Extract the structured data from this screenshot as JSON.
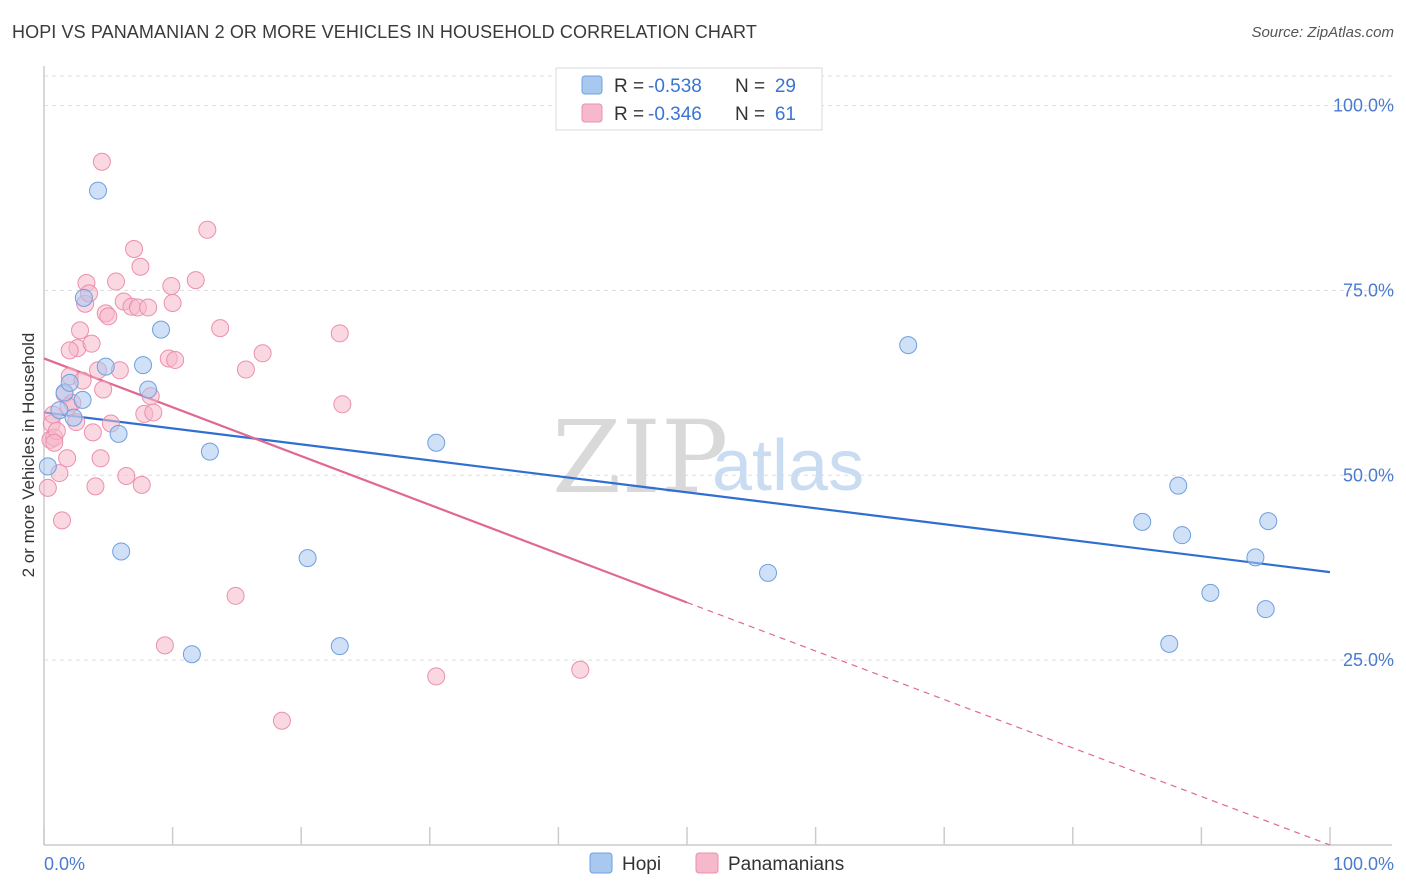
{
  "header": {
    "title": "HOPI VS PANAMANIAN 2 OR MORE VEHICLES IN HOUSEHOLD CORRELATION CHART",
    "source": "Source: ZipAtlas.com"
  },
  "legend": {
    "hopi": {
      "r_label": "R =",
      "r_value": "-0.538",
      "n_label": "N =",
      "n_value": "29"
    },
    "panamanian": {
      "r_label": "R =",
      "r_value": "-0.346",
      "n_label": "N =",
      "n_value": "61"
    }
  },
  "bottom_legend": {
    "hopi": "Hopi",
    "panamanian": "Panamanians"
  },
  "watermark": {
    "zip": "ZIP",
    "atlas": "atlas"
  },
  "colors": {
    "hopi_fill": "#a9c8f0",
    "hopi_stroke": "#6fa0e0",
    "hopi_line": "#2f6fd0",
    "pan_fill": "#f6b8cb",
    "pan_stroke": "#ec8fac",
    "pan_line": "#e06892",
    "grid": "#dddddd",
    "axis": "#cccccc"
  },
  "chart_data": {
    "type": "scatter",
    "title": "HOPI VS PANAMANIAN 2 OR MORE VEHICLES IN HOUSEHOLD CORRELATION CHART",
    "xlabel": "",
    "ylabel": "2 or more Vehicles in Household",
    "xlim": [
      0,
      100
    ],
    "ylim": [
      0,
      104
    ],
    "x_tick_labels": [
      "0.0%",
      "100.0%"
    ],
    "y_ticks": [
      25,
      50,
      75,
      100
    ],
    "y_tick_labels": [
      "25.0%",
      "50.0%",
      "75.0%",
      "100.0%"
    ],
    "series": [
      {
        "name": "Hopi",
        "points": [
          [
            0.3,
            51.2
          ],
          [
            1.2,
            58.8
          ],
          [
            1.6,
            61.2
          ],
          [
            2.0,
            62.5
          ],
          [
            2.3,
            57.8
          ],
          [
            3.0,
            60.2
          ],
          [
            3.1,
            74.0
          ],
          [
            4.2,
            88.5
          ],
          [
            4.8,
            64.7
          ],
          [
            5.8,
            55.6
          ],
          [
            6.0,
            39.7
          ],
          [
            7.7,
            64.9
          ],
          [
            8.1,
            61.6
          ],
          [
            9.1,
            69.7
          ],
          [
            11.5,
            25.8
          ],
          [
            12.9,
            53.2
          ],
          [
            20.5,
            38.8
          ],
          [
            23.0,
            26.9
          ],
          [
            30.5,
            54.4
          ],
          [
            56.3,
            36.8
          ],
          [
            67.2,
            67.6
          ],
          [
            85.4,
            43.7
          ],
          [
            87.5,
            27.2
          ],
          [
            88.2,
            48.6
          ],
          [
            88.5,
            41.9
          ],
          [
            90.7,
            34.1
          ],
          [
            94.2,
            38.9
          ],
          [
            95.0,
            31.9
          ],
          [
            95.2,
            43.8
          ]
        ]
      },
      {
        "name": "Panamanians",
        "points": [
          [
            0.3,
            48.3
          ],
          [
            0.5,
            54.8
          ],
          [
            0.6,
            57.0
          ],
          [
            0.7,
            58.2
          ],
          [
            0.8,
            55.1
          ],
          [
            1.0,
            56.0
          ],
          [
            1.2,
            50.3
          ],
          [
            1.4,
            43.9
          ],
          [
            1.6,
            61.0
          ],
          [
            1.8,
            52.3
          ],
          [
            2.0,
            63.4
          ],
          [
            2.2,
            59.8
          ],
          [
            2.5,
            57.2
          ],
          [
            2.6,
            67.2
          ],
          [
            2.8,
            69.6
          ],
          [
            3.0,
            62.8
          ],
          [
            3.2,
            73.2
          ],
          [
            3.3,
            76.0
          ],
          [
            3.5,
            74.6
          ],
          [
            3.7,
            67.8
          ],
          [
            3.8,
            55.8
          ],
          [
            4.0,
            48.5
          ],
          [
            4.2,
            64.2
          ],
          [
            4.4,
            52.3
          ],
          [
            4.6,
            61.6
          ],
          [
            4.8,
            71.9
          ],
          [
            5.0,
            71.5
          ],
          [
            5.2,
            57.0
          ],
          [
            5.6,
            76.2
          ],
          [
            5.9,
            64.2
          ],
          [
            6.2,
            73.5
          ],
          [
            6.4,
            49.9
          ],
          [
            6.8,
            72.8
          ],
          [
            7.0,
            80.6
          ],
          [
            7.3,
            72.7
          ],
          [
            7.5,
            78.2
          ],
          [
            7.6,
            48.7
          ],
          [
            7.8,
            58.3
          ],
          [
            8.1,
            72.7
          ],
          [
            8.3,
            60.7
          ],
          [
            8.5,
            58.5
          ],
          [
            9.4,
            27.0
          ],
          [
            9.7,
            65.8
          ],
          [
            9.9,
            75.6
          ],
          [
            10.0,
            73.3
          ],
          [
            10.2,
            65.6
          ],
          [
            11.8,
            76.4
          ],
          [
            12.7,
            83.2
          ],
          [
            13.7,
            69.9
          ],
          [
            14.9,
            33.7
          ],
          [
            15.7,
            64.3
          ],
          [
            17.0,
            66.5
          ],
          [
            18.5,
            16.8
          ],
          [
            23.0,
            69.2
          ],
          [
            23.2,
            59.6
          ],
          [
            30.5,
            22.8
          ],
          [
            41.7,
            23.7
          ],
          [
            4.5,
            92.4
          ],
          [
            2.0,
            66.9
          ],
          [
            1.9,
            59.3
          ],
          [
            0.8,
            54.4
          ]
        ]
      }
    ],
    "trend_lines": [
      {
        "name": "Hopi",
        "from": [
          0,
          58.5
        ],
        "to": [
          100,
          36.9
        ],
        "style": "solid"
      },
      {
        "name": "Panamanians",
        "from": [
          0,
          65.8
        ],
        "to": [
          50,
          32.8
        ],
        "style": "solid"
      },
      {
        "name": "Panamanians",
        "from": [
          50,
          32.8
        ],
        "to": [
          100,
          0
        ],
        "style": "dashed"
      }
    ],
    "legend_position": "top-center"
  }
}
